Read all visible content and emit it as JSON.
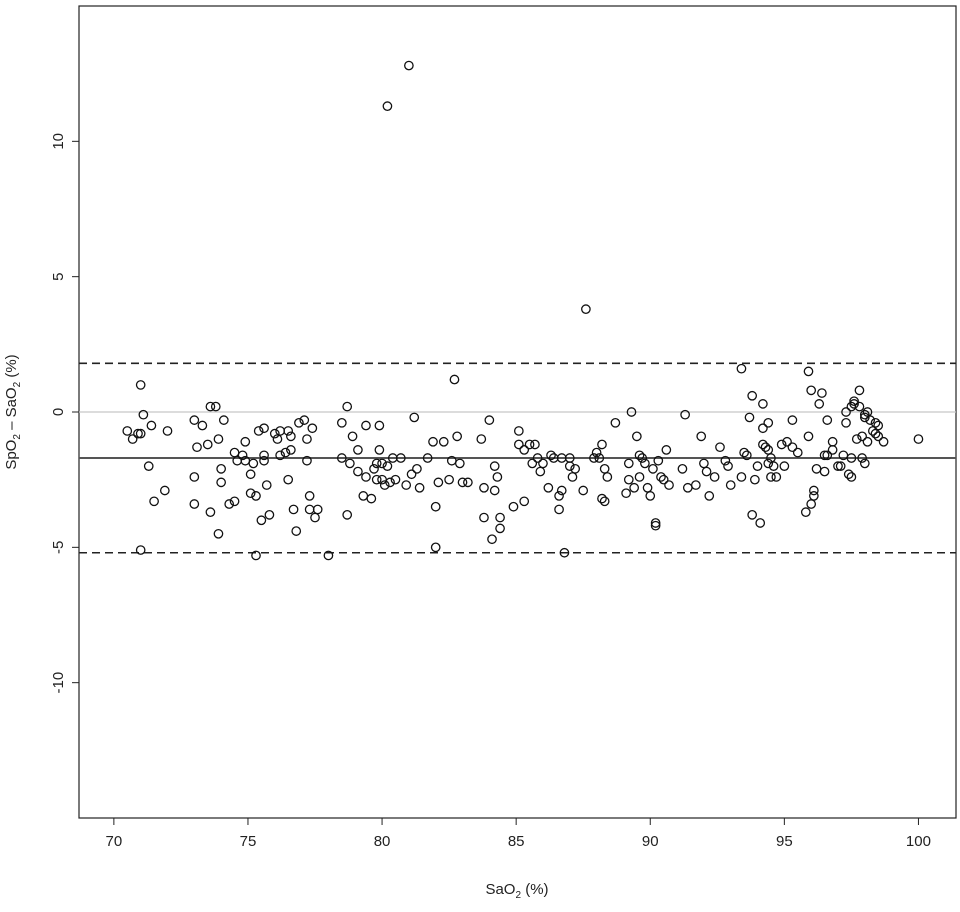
{
  "chart_data": {
    "type": "scatter",
    "title": "",
    "xlabel": {
      "prefix": "SaO",
      "sub": "2",
      "suffix": " (%)"
    },
    "ylabel": {
      "p1": "SpO",
      "s1": "2",
      "mid": " – SaO",
      "s2": "2",
      "suffix": " (%)"
    },
    "xlim": [
      68.7,
      101.4
    ],
    "ylim": [
      -15,
      15
    ],
    "x_ticks": [
      {
        "value": 70,
        "label": "70"
      },
      {
        "value": 75,
        "label": "75"
      },
      {
        "value": 80,
        "label": "80"
      },
      {
        "value": 85,
        "label": "85"
      },
      {
        "value": 90,
        "label": "90"
      },
      {
        "value": 95,
        "label": "95"
      },
      {
        "value": 100,
        "label": "100"
      }
    ],
    "y_ticks": [
      {
        "value": 10,
        "label": "10"
      },
      {
        "value": 5,
        "label": "5"
      },
      {
        "value": 0,
        "label": "0"
      },
      {
        "value": -5,
        "label": "-5"
      },
      {
        "value": -10,
        "label": "-10"
      }
    ],
    "grid": false,
    "reference_lines": [
      {
        "id": "zero-line",
        "y": 0,
        "style": "solid",
        "color": "#c8c8c8"
      },
      {
        "id": "mean-bias-line",
        "y": -1.7,
        "style": "solid",
        "color": "#555555"
      },
      {
        "id": "upper-limit-line",
        "y": 1.8,
        "style": "dashed",
        "color": "#222222"
      },
      {
        "id": "lower-limit-line",
        "y": -5.2,
        "style": "dashed",
        "color": "#222222"
      }
    ],
    "points": [
      [
        70.5,
        -0.7
      ],
      [
        70.7,
        -1.0
      ],
      [
        70.9,
        -0.8
      ],
      [
        71.0,
        -0.8
      ],
      [
        71.0,
        1.0
      ],
      [
        71.1,
        -0.1
      ],
      [
        71.0,
        -5.1
      ],
      [
        71.3,
        -2.0
      ],
      [
        71.4,
        -0.5
      ],
      [
        71.5,
        -3.3
      ],
      [
        71.9,
        -2.9
      ],
      [
        72.0,
        -0.7
      ],
      [
        73.0,
        -0.3
      ],
      [
        73.0,
        -2.4
      ],
      [
        73.1,
        -1.3
      ],
      [
        73.0,
        -3.4
      ],
      [
        73.3,
        -0.5
      ],
      [
        73.5,
        -1.2
      ],
      [
        73.6,
        -3.7
      ],
      [
        73.6,
        0.2
      ],
      [
        73.8,
        0.2
      ],
      [
        73.9,
        -1.0
      ],
      [
        73.9,
        -4.5
      ],
      [
        74.0,
        -2.1
      ],
      [
        74.0,
        -2.6
      ],
      [
        74.1,
        -0.3
      ],
      [
        74.3,
        -3.4
      ],
      [
        74.5,
        -1.5
      ],
      [
        74.5,
        -3.3
      ],
      [
        74.6,
        -1.8
      ],
      [
        74.8,
        -1.6
      ],
      [
        74.9,
        -1.1
      ],
      [
        74.9,
        -1.8
      ],
      [
        75.1,
        -2.3
      ],
      [
        75.1,
        -3.0
      ],
      [
        75.2,
        -1.9
      ],
      [
        75.3,
        -3.1
      ],
      [
        75.3,
        -5.3
      ],
      [
        75.4,
        -0.7
      ],
      [
        75.5,
        -4.0
      ],
      [
        75.6,
        -1.6
      ],
      [
        75.6,
        -1.8
      ],
      [
        75.6,
        -0.6
      ],
      [
        75.7,
        -2.7
      ],
      [
        75.8,
        -3.8
      ],
      [
        76.0,
        -0.8
      ],
      [
        76.1,
        -1.0
      ],
      [
        76.2,
        -0.7
      ],
      [
        76.2,
        -1.6
      ],
      [
        76.4,
        -1.5
      ],
      [
        76.5,
        -2.5
      ],
      [
        76.5,
        -0.7
      ],
      [
        76.6,
        -0.9
      ],
      [
        76.6,
        -1.4
      ],
      [
        76.7,
        -3.6
      ],
      [
        76.8,
        -4.4
      ],
      [
        76.9,
        -0.4
      ],
      [
        77.1,
        -0.3
      ],
      [
        77.2,
        -1.0
      ],
      [
        77.3,
        -3.1
      ],
      [
        77.4,
        -0.6
      ],
      [
        77.3,
        -3.6
      ],
      [
        77.5,
        -3.9
      ],
      [
        77.6,
        -3.6
      ],
      [
        77.2,
        -1.8
      ],
      [
        78.0,
        -5.3
      ],
      [
        78.5,
        -1.7
      ],
      [
        78.5,
        -0.4
      ],
      [
        78.7,
        0.2
      ],
      [
        78.7,
        -3.8
      ],
      [
        78.8,
        -1.9
      ],
      [
        78.9,
        -0.9
      ],
      [
        79.1,
        -1.4
      ],
      [
        79.1,
        -2.2
      ],
      [
        79.3,
        -3.1
      ],
      [
        79.4,
        -2.4
      ],
      [
        79.4,
        -0.5
      ],
      [
        79.6,
        -3.2
      ],
      [
        79.7,
        -2.1
      ],
      [
        79.8,
        -2.5
      ],
      [
        79.8,
        -1.9
      ],
      [
        79.9,
        -0.5
      ],
      [
        79.9,
        -1.4
      ],
      [
        80.0,
        -2.5
      ],
      [
        80.0,
        -1.9
      ],
      [
        80.1,
        -2.7
      ],
      [
        80.2,
        -2.0
      ],
      [
        80.2,
        11.3
      ],
      [
        80.3,
        -2.6
      ],
      [
        80.4,
        -1.7
      ],
      [
        80.5,
        -2.5
      ],
      [
        80.7,
        -1.7
      ],
      [
        80.9,
        -2.7
      ],
      [
        81.0,
        12.8
      ],
      [
        81.1,
        -2.3
      ],
      [
        81.2,
        -0.2
      ],
      [
        81.3,
        -2.1
      ],
      [
        81.4,
        -2.8
      ],
      [
        81.7,
        -1.7
      ],
      [
        81.9,
        -1.1
      ],
      [
        82.0,
        -3.5
      ],
      [
        82.0,
        -5.0
      ],
      [
        82.1,
        -2.6
      ],
      [
        82.3,
        -1.1
      ],
      [
        82.5,
        -2.5
      ],
      [
        82.6,
        -1.8
      ],
      [
        82.7,
        1.2
      ],
      [
        82.8,
        -0.9
      ],
      [
        82.9,
        -1.9
      ],
      [
        83.0,
        -2.6
      ],
      [
        83.2,
        -2.6
      ],
      [
        83.7,
        -1.0
      ],
      [
        83.8,
        -3.9
      ],
      [
        83.8,
        -2.8
      ],
      [
        84.0,
        -0.3
      ],
      [
        84.1,
        -4.7
      ],
      [
        84.2,
        -2.9
      ],
      [
        84.2,
        -2.0
      ],
      [
        84.3,
        -2.4
      ],
      [
        84.4,
        -3.9
      ],
      [
        84.4,
        -4.3
      ],
      [
        84.9,
        -3.5
      ],
      [
        85.1,
        -1.2
      ],
      [
        85.1,
        -0.7
      ],
      [
        85.3,
        -1.4
      ],
      [
        85.3,
        -3.3
      ],
      [
        85.5,
        -1.2
      ],
      [
        85.6,
        -1.9
      ],
      [
        85.7,
        -1.2
      ],
      [
        85.8,
        -1.7
      ],
      [
        85.9,
        -2.2
      ],
      [
        86.0,
        -1.9
      ],
      [
        86.2,
        -2.8
      ],
      [
        86.3,
        -1.6
      ],
      [
        86.4,
        -1.7
      ],
      [
        86.6,
        -3.1
      ],
      [
        86.6,
        -3.6
      ],
      [
        86.7,
        -2.9
      ],
      [
        86.7,
        -1.7
      ],
      [
        86.8,
        -5.2
      ],
      [
        87.0,
        -1.7
      ],
      [
        87.0,
        -2.0
      ],
      [
        87.1,
        -2.4
      ],
      [
        87.2,
        -2.1
      ],
      [
        87.5,
        -2.9
      ],
      [
        87.6,
        3.8
      ],
      [
        87.9,
        -1.7
      ],
      [
        88.0,
        -1.5
      ],
      [
        88.1,
        -1.7
      ],
      [
        88.2,
        -1.2
      ],
      [
        88.2,
        -3.2
      ],
      [
        88.3,
        -3.3
      ],
      [
        88.3,
        -2.1
      ],
      [
        88.4,
        -2.4
      ],
      [
        88.7,
        -0.4
      ],
      [
        89.1,
        -3.0
      ],
      [
        89.2,
        -1.9
      ],
      [
        89.2,
        -2.5
      ],
      [
        89.3,
        0.0
      ],
      [
        89.4,
        -2.8
      ],
      [
        89.5,
        -0.9
      ],
      [
        89.6,
        -1.6
      ],
      [
        89.6,
        -2.4
      ],
      [
        89.7,
        -1.7
      ],
      [
        89.8,
        -1.9
      ],
      [
        89.9,
        -2.8
      ],
      [
        90.0,
        -3.1
      ],
      [
        90.1,
        -2.1
      ],
      [
        90.2,
        -4.1
      ],
      [
        90.2,
        -4.2
      ],
      [
        90.3,
        -1.8
      ],
      [
        90.4,
        -2.4
      ],
      [
        90.5,
        -2.5
      ],
      [
        90.6,
        -1.4
      ],
      [
        90.7,
        -2.7
      ],
      [
        91.2,
        -2.1
      ],
      [
        91.3,
        -0.1
      ],
      [
        91.4,
        -2.8
      ],
      [
        91.7,
        -2.7
      ],
      [
        91.9,
        -0.9
      ],
      [
        92.0,
        -1.9
      ],
      [
        92.1,
        -2.2
      ],
      [
        92.2,
        -3.1
      ],
      [
        92.4,
        -2.4
      ],
      [
        92.6,
        -1.3
      ],
      [
        92.8,
        -1.8
      ],
      [
        92.9,
        -2.0
      ],
      [
        93.0,
        -2.7
      ],
      [
        93.4,
        1.6
      ],
      [
        93.4,
        -2.4
      ],
      [
        93.5,
        -1.5
      ],
      [
        93.6,
        -1.6
      ],
      [
        93.7,
        -0.2
      ],
      [
        93.8,
        -3.8
      ],
      [
        93.8,
        0.6
      ],
      [
        93.9,
        -2.5
      ],
      [
        94.0,
        -2.0
      ],
      [
        94.1,
        -4.1
      ],
      [
        94.2,
        -1.2
      ],
      [
        94.2,
        0.3
      ],
      [
        94.2,
        -0.6
      ],
      [
        94.3,
        -1.3
      ],
      [
        94.4,
        -1.9
      ],
      [
        94.4,
        -1.4
      ],
      [
        94.4,
        -0.4
      ],
      [
        94.5,
        -2.4
      ],
      [
        94.5,
        -1.7
      ],
      [
        94.6,
        -2.0
      ],
      [
        94.7,
        -2.4
      ],
      [
        94.9,
        -1.2
      ],
      [
        95.0,
        -2.0
      ],
      [
        95.1,
        -1.1
      ],
      [
        95.3,
        -1.3
      ],
      [
        95.3,
        -0.3
      ],
      [
        95.5,
        -1.5
      ],
      [
        95.8,
        -3.7
      ],
      [
        95.9,
        1.5
      ],
      [
        95.9,
        -0.9
      ],
      [
        96.0,
        0.8
      ],
      [
        96.0,
        -3.4
      ],
      [
        96.1,
        -2.9
      ],
      [
        96.1,
        -3.1
      ],
      [
        96.2,
        -2.1
      ],
      [
        96.3,
        0.3
      ],
      [
        96.4,
        0.7
      ],
      [
        96.5,
        -1.6
      ],
      [
        96.5,
        -2.2
      ],
      [
        96.6,
        -1.6
      ],
      [
        96.6,
        -0.3
      ],
      [
        96.8,
        -1.1
      ],
      [
        96.8,
        -1.4
      ],
      [
        97.0,
        -2.0
      ],
      [
        97.1,
        -2.0
      ],
      [
        97.2,
        -1.6
      ],
      [
        97.3,
        0.0
      ],
      [
        97.3,
        -0.4
      ],
      [
        97.4,
        -2.3
      ],
      [
        97.5,
        -1.7
      ],
      [
        97.5,
        -2.4
      ],
      [
        97.5,
        0.2
      ],
      [
        97.6,
        0.3
      ],
      [
        97.6,
        0.4
      ],
      [
        97.7,
        -1.0
      ],
      [
        97.8,
        0.8
      ],
      [
        97.8,
        0.2
      ],
      [
        97.9,
        -1.7
      ],
      [
        97.9,
        -0.9
      ],
      [
        98.0,
        -1.9
      ],
      [
        98.0,
        -0.1
      ],
      [
        98.0,
        -0.2
      ],
      [
        98.1,
        0.0
      ],
      [
        98.1,
        -1.1
      ],
      [
        98.2,
        -0.3
      ],
      [
        98.3,
        -0.7
      ],
      [
        98.4,
        -0.4
      ],
      [
        98.4,
        -0.8
      ],
      [
        98.5,
        -0.5
      ],
      [
        98.5,
        -0.9
      ],
      [
        98.7,
        -1.1
      ],
      [
        100.0,
        -1.0
      ]
    ]
  }
}
